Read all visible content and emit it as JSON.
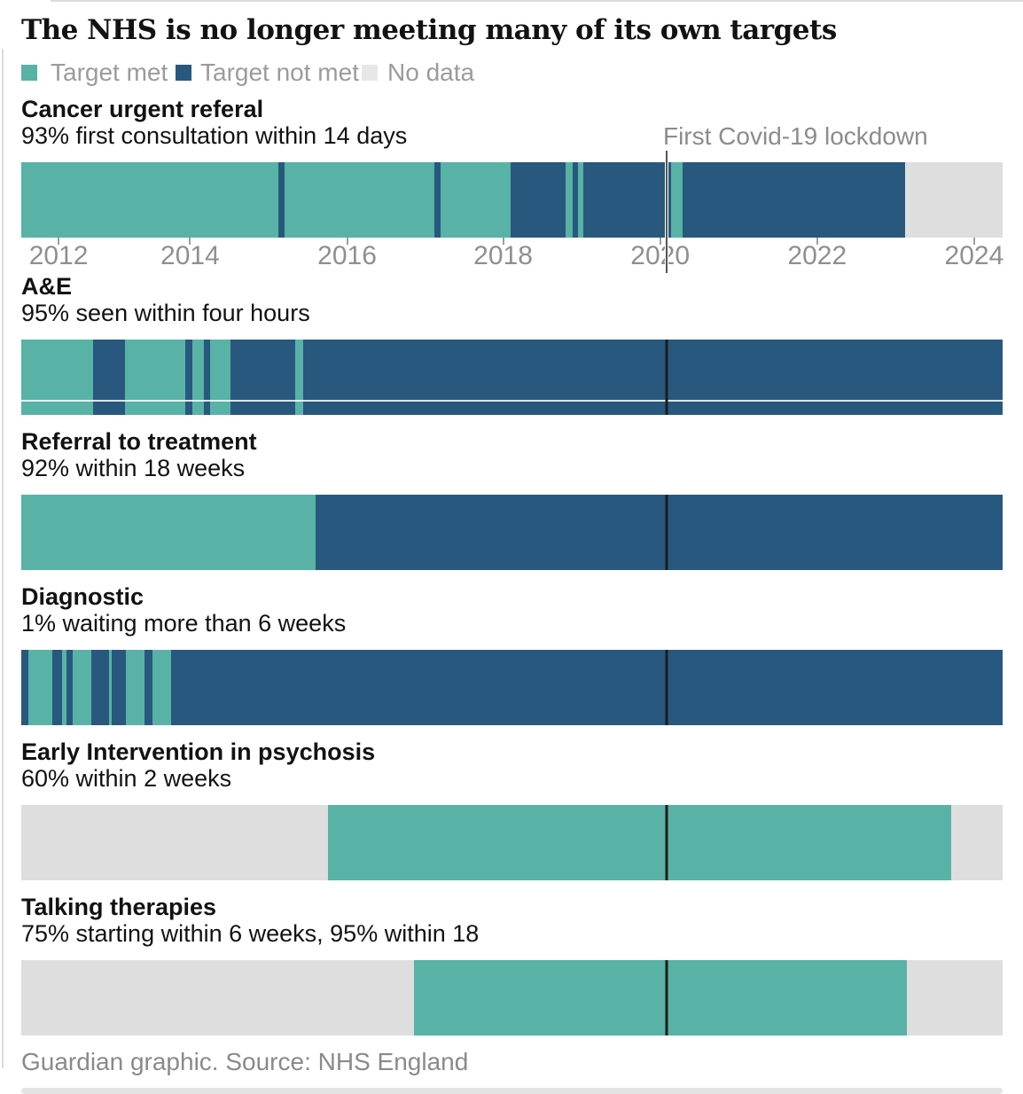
{
  "page": {
    "title": "The NHS is no longer meeting many of its own targets",
    "footer": "Guardian graphic. Source: NHS England"
  },
  "legend": [
    {
      "label": "Target met",
      "status": "met",
      "color": "#58b2a6"
    },
    {
      "label": "Target not met",
      "status": "not_met",
      "color": "#28587e"
    },
    {
      "label": "No data",
      "status": "no_data",
      "color": "#e7e7e7"
    }
  ],
  "colors": {
    "met": "#58b2a6",
    "not_met": "#28587e",
    "no_data": "#dedede",
    "covid_line": "#1c1c1c",
    "axis_text": "#8f8f8f",
    "muted_text": "#9b9b9b"
  },
  "chart_data": {
    "type": "status-timeline",
    "title": "The NHS is no longer meeting many of its own targets",
    "x_range_years": [
      2011.5,
      2024.4
    ],
    "x_ticks": [
      {
        "label": "2012",
        "pct": 3.8
      },
      {
        "label": "2014",
        "pct": 17.2
      },
      {
        "label": "2016",
        "pct": 33.2
      },
      {
        "label": "2018",
        "pct": 49.1
      },
      {
        "label": "2020",
        "pct": 65.1
      },
      {
        "label": "2022",
        "pct": 81.1
      },
      {
        "label": "2024",
        "pct": 97.1
      }
    ],
    "legend_position": "top",
    "statuses": {
      "met": "Target met",
      "not_met": "Target not met",
      "no_data": "No data"
    },
    "annotation": {
      "label": "First Covid-19 lockdown",
      "pct": 65.8,
      "year": 2020.2,
      "text_left_pct": 65.4
    },
    "series": [
      {
        "name": "Cancer urgent referal",
        "target": "93% first consultation within 14 days",
        "segments": [
          [
            "met",
            0,
            26.2
          ],
          [
            "not_met",
            26.2,
            26.8
          ],
          [
            "met",
            26.8,
            42.1
          ],
          [
            "not_met",
            42.1,
            42.7
          ],
          [
            "met",
            42.7,
            49.9
          ],
          [
            "not_met",
            49.9,
            55.5
          ],
          [
            "met",
            55.5,
            56.2
          ],
          [
            "not_met",
            56.2,
            56.7
          ],
          [
            "met",
            56.7,
            57.3
          ],
          [
            "not_met",
            57.3,
            66.2
          ],
          [
            "met",
            66.2,
            67.4
          ],
          [
            "not_met",
            67.4,
            90.1
          ],
          [
            "no_data",
            90.1,
            100
          ]
        ]
      },
      {
        "name": "A&E",
        "target": "95% seen within four hours",
        "segments": [
          [
            "met",
            0,
            7.3
          ],
          [
            "not_met",
            7.3,
            10.6
          ],
          [
            "met",
            10.6,
            16.7
          ],
          [
            "not_met",
            16.7,
            17.4
          ],
          [
            "met",
            17.4,
            18.6
          ],
          [
            "not_met",
            18.6,
            19.2
          ],
          [
            "met",
            19.2,
            21.3
          ],
          [
            "not_met",
            21.3,
            27.9
          ],
          [
            "met",
            27.9,
            28.7
          ],
          [
            "not_met",
            28.7,
            100
          ]
        ]
      },
      {
        "name": "Referral to treatment",
        "target": "92% within 18 weeks",
        "segments": [
          [
            "met",
            0,
            30.0
          ],
          [
            "not_met",
            30.0,
            100
          ]
        ]
      },
      {
        "name": "Diagnostic",
        "target": "1% waiting more than 6 weeks",
        "segments": [
          [
            "not_met",
            0,
            0.7
          ],
          [
            "met",
            0.7,
            3.2
          ],
          [
            "not_met",
            3.2,
            4.2
          ],
          [
            "met",
            4.2,
            4.6
          ],
          [
            "not_met",
            4.6,
            5.2
          ],
          [
            "met",
            5.2,
            7.1
          ],
          [
            "not_met",
            7.1,
            8.9
          ],
          [
            "met",
            8.9,
            9.2
          ],
          [
            "not_met",
            9.2,
            10.7
          ],
          [
            "met",
            10.7,
            12.6
          ],
          [
            "not_met",
            12.6,
            13.4
          ],
          [
            "met",
            13.4,
            15.3
          ],
          [
            "not_met",
            15.3,
            100
          ]
        ]
      },
      {
        "name": "Early Intervention in psychosis",
        "target": "60% within 2 weeks",
        "segments": [
          [
            "no_data",
            0,
            31.3
          ],
          [
            "met",
            31.3,
            94.8
          ],
          [
            "no_data",
            94.8,
            100
          ]
        ]
      },
      {
        "name": "Talking therapies",
        "target": "75% starting within 6 weeks, 95% within 18",
        "segments": [
          [
            "no_data",
            0,
            40.0
          ],
          [
            "met",
            40.0,
            90.2
          ],
          [
            "no_data",
            90.2,
            100
          ]
        ]
      }
    ]
  },
  "legend_layout": {
    "swatch_lefts": [
      0,
      174,
      384
    ],
    "label_lefts": [
      33,
      202,
      413
    ]
  }
}
